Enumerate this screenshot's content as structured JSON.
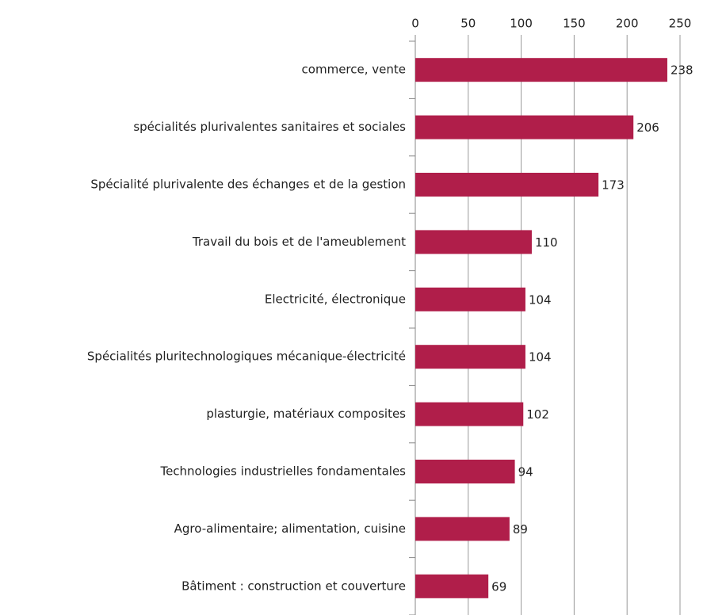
{
  "chart_data": {
    "type": "bar",
    "categories": [
      "commerce, vente",
      "spécialités plurivalentes sanitaires et sociales",
      "Spécialité plurivalente des échanges et de la gestion",
      "Travail du bois et de l'ameublement",
      "Electricité, électronique",
      "Spécialités pluritechnologiques mécanique-électricité",
      "plasturgie, matériaux composites",
      "Technologies industrielles fondamentales",
      "Agro-alimentaire; alimentation, cuisine",
      "Bâtiment : construction et couverture"
    ],
    "values": [
      238,
      206,
      173,
      110,
      104,
      104,
      102,
      94,
      89,
      69
    ],
    "color": "#b01e4a",
    "xlim": [
      0,
      250
    ],
    "xticks": [
      0,
      50,
      100,
      150,
      200,
      250
    ],
    "grid": true
  }
}
